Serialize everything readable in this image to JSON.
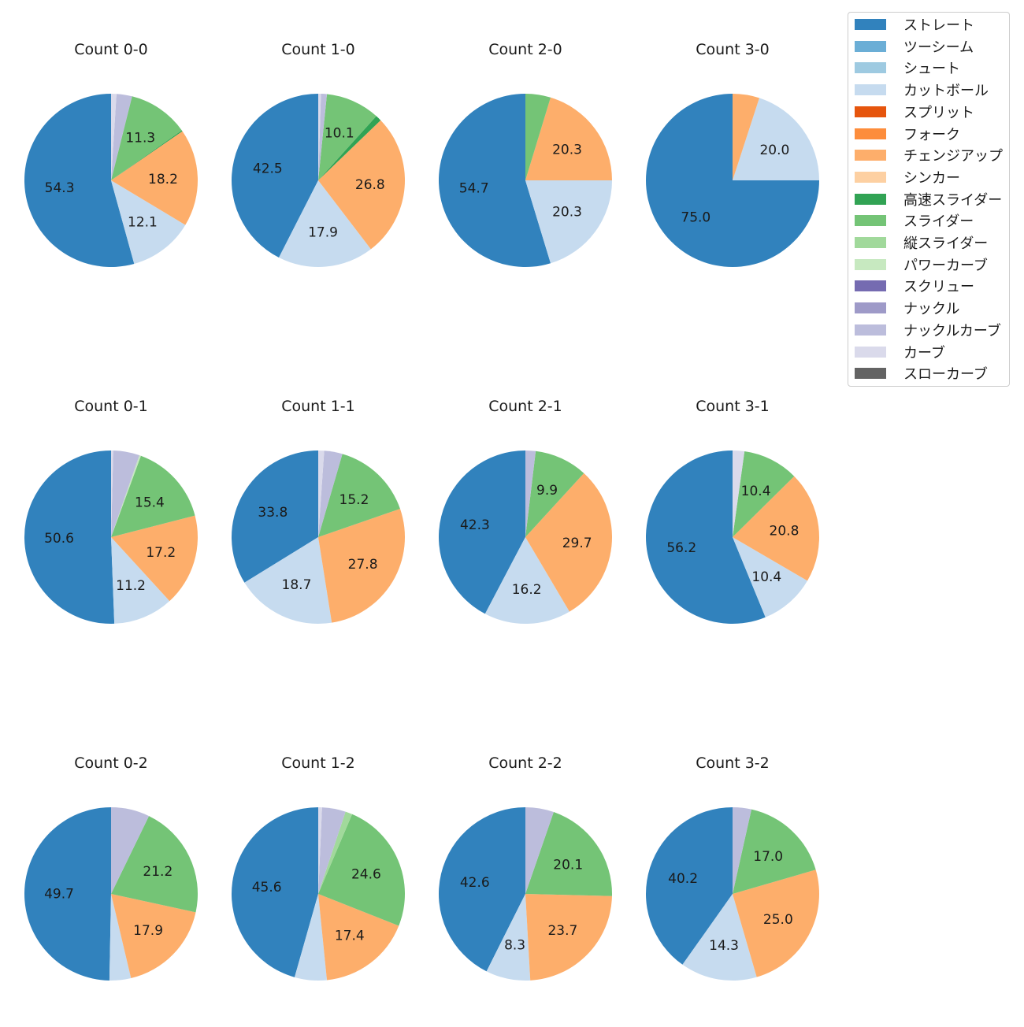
{
  "chart_data": {
    "type": "pie",
    "legend_position": "top-right",
    "legend": [
      {
        "name": "ストレート",
        "color": "#3182bd"
      },
      {
        "name": "ツーシーム",
        "color": "#6baed6"
      },
      {
        "name": "シュート",
        "color": "#9ecae1"
      },
      {
        "name": "カットボール",
        "color": "#c6dbef"
      },
      {
        "name": "スプリット",
        "color": "#e6550d"
      },
      {
        "name": "フォーク",
        "color": "#fd8d3c"
      },
      {
        "name": "チェンジアップ",
        "color": "#fdae6b"
      },
      {
        "name": "シンカー",
        "color": "#fdd0a2"
      },
      {
        "name": "高速スライダー",
        "color": "#31a354"
      },
      {
        "name": "スライダー",
        "color": "#74c476"
      },
      {
        "name": "縦スライダー",
        "color": "#a1d99b"
      },
      {
        "name": "パワーカーブ",
        "color": "#c7e9c0"
      },
      {
        "name": "スクリュー",
        "color": "#756bb1"
      },
      {
        "name": "ナックル",
        "color": "#9e9ac8"
      },
      {
        "name": "ナックルカーブ",
        "color": "#bcbddc"
      },
      {
        "name": "カーブ",
        "color": "#dadaeb"
      },
      {
        "name": "スローカーブ",
        "color": "#636363"
      }
    ],
    "charts": [
      {
        "title": "Count 0-0",
        "slices": [
          {
            "name": "ストレート",
            "value": 54.3,
            "label": "54.3"
          },
          {
            "name": "カットボール",
            "value": 12.1,
            "label": "12.1"
          },
          {
            "name": "チェンジアップ",
            "value": 18.2,
            "label": "18.2"
          },
          {
            "name": "高速スライダー",
            "value": 0.2,
            "label": ""
          },
          {
            "name": "スライダー",
            "value": 11.3,
            "label": "11.3"
          },
          {
            "name": "ナックルカーブ",
            "value": 2.9,
            "label": ""
          },
          {
            "name": "カーブ",
            "value": 1.0,
            "label": ""
          }
        ]
      },
      {
        "title": "Count 1-0",
        "slices": [
          {
            "name": "ストレート",
            "value": 42.5,
            "label": "42.5"
          },
          {
            "name": "カットボール",
            "value": 17.9,
            "label": "17.9"
          },
          {
            "name": "チェンジアップ",
            "value": 26.8,
            "label": "26.8"
          },
          {
            "name": "高速スライダー",
            "value": 1.1,
            "label": ""
          },
          {
            "name": "スライダー",
            "value": 10.1,
            "label": "10.1"
          },
          {
            "name": "ナックルカーブ",
            "value": 1.1,
            "label": ""
          },
          {
            "name": "カーブ",
            "value": 0.5,
            "label": ""
          }
        ]
      },
      {
        "title": "Count 2-0",
        "slices": [
          {
            "name": "ストレート",
            "value": 54.7,
            "label": "54.7"
          },
          {
            "name": "カットボール",
            "value": 20.3,
            "label": "20.3"
          },
          {
            "name": "チェンジアップ",
            "value": 20.3,
            "label": "20.3"
          },
          {
            "name": "スライダー",
            "value": 4.7,
            "label": ""
          }
        ]
      },
      {
        "title": "Count 3-0",
        "slices": [
          {
            "name": "ストレート",
            "value": 75.0,
            "label": "75.0"
          },
          {
            "name": "カットボール",
            "value": 20.0,
            "label": "20.0"
          },
          {
            "name": "チェンジアップ",
            "value": 5.0,
            "label": ""
          }
        ]
      },
      {
        "title": "Count 0-1",
        "slices": [
          {
            "name": "ストレート",
            "value": 50.6,
            "label": "50.6"
          },
          {
            "name": "カットボール",
            "value": 11.2,
            "label": "11.2"
          },
          {
            "name": "チェンジアップ",
            "value": 17.2,
            "label": "17.2"
          },
          {
            "name": "スライダー",
            "value": 15.4,
            "label": "15.4"
          },
          {
            "name": "パワーカーブ",
            "value": 0.3,
            "label": ""
          },
          {
            "name": "ナックルカーブ",
            "value": 4.9,
            "label": ""
          },
          {
            "name": "カーブ",
            "value": 0.4,
            "label": ""
          }
        ]
      },
      {
        "title": "Count 1-1",
        "slices": [
          {
            "name": "ストレート",
            "value": 33.8,
            "label": "33.8"
          },
          {
            "name": "カットボール",
            "value": 18.7,
            "label": "18.7"
          },
          {
            "name": "チェンジアップ",
            "value": 27.8,
            "label": "27.8"
          },
          {
            "name": "スライダー",
            "value": 15.2,
            "label": "15.2"
          },
          {
            "name": "ナックルカーブ",
            "value": 3.4,
            "label": ""
          },
          {
            "name": "カーブ",
            "value": 1.1,
            "label": ""
          }
        ]
      },
      {
        "title": "Count 2-1",
        "slices": [
          {
            "name": "ストレート",
            "value": 42.3,
            "label": "42.3"
          },
          {
            "name": "カットボール",
            "value": 16.2,
            "label": "16.2"
          },
          {
            "name": "チェンジアップ",
            "value": 29.7,
            "label": "29.7"
          },
          {
            "name": "スライダー",
            "value": 9.9,
            "label": "9.9"
          },
          {
            "name": "ナックルカーブ",
            "value": 1.9,
            "label": ""
          }
        ]
      },
      {
        "title": "Count 3-1",
        "slices": [
          {
            "name": "ストレート",
            "value": 56.2,
            "label": "56.2"
          },
          {
            "name": "カットボール",
            "value": 10.4,
            "label": "10.4"
          },
          {
            "name": "チェンジアップ",
            "value": 20.8,
            "label": "20.8"
          },
          {
            "name": "スライダー",
            "value": 10.4,
            "label": "10.4"
          },
          {
            "name": "カーブ",
            "value": 2.2,
            "label": ""
          }
        ]
      },
      {
        "title": "Count 0-2",
        "slices": [
          {
            "name": "ストレート",
            "value": 49.7,
            "label": "49.7"
          },
          {
            "name": "カットボール",
            "value": 4.0,
            "label": ""
          },
          {
            "name": "チェンジアップ",
            "value": 17.9,
            "label": "17.9"
          },
          {
            "name": "スライダー",
            "value": 21.2,
            "label": "21.2"
          },
          {
            "name": "ナックルカーブ",
            "value": 7.2,
            "label": ""
          }
        ]
      },
      {
        "title": "Count 1-2",
        "slices": [
          {
            "name": "ストレート",
            "value": 45.6,
            "label": "45.6"
          },
          {
            "name": "カットボール",
            "value": 6.0,
            "label": ""
          },
          {
            "name": "チェンジアップ",
            "value": 17.4,
            "label": "17.4"
          },
          {
            "name": "スライダー",
            "value": 24.6,
            "label": "24.6"
          },
          {
            "name": "縦スライダー",
            "value": 1.3,
            "label": ""
          },
          {
            "name": "ナックルカーブ",
            "value": 4.4,
            "label": ""
          },
          {
            "name": "カーブ",
            "value": 0.7,
            "label": ""
          }
        ]
      },
      {
        "title": "Count 2-2",
        "slices": [
          {
            "name": "ストレート",
            "value": 42.6,
            "label": "42.6"
          },
          {
            "name": "カットボール",
            "value": 8.3,
            "label": "8.3"
          },
          {
            "name": "チェンジアップ",
            "value": 23.7,
            "label": "23.7"
          },
          {
            "name": "スライダー",
            "value": 20.1,
            "label": "20.1"
          },
          {
            "name": "ナックルカーブ",
            "value": 5.3,
            "label": ""
          }
        ]
      },
      {
        "title": "Count 3-2",
        "slices": [
          {
            "name": "ストレート",
            "value": 40.2,
            "label": "40.2"
          },
          {
            "name": "カットボール",
            "value": 14.3,
            "label": "14.3"
          },
          {
            "name": "チェンジアップ",
            "value": 25.0,
            "label": "25.0"
          },
          {
            "name": "スライダー",
            "value": 17.0,
            "label": "17.0"
          },
          {
            "name": "ナックルカーブ",
            "value": 3.5,
            "label": ""
          }
        ]
      }
    ]
  }
}
